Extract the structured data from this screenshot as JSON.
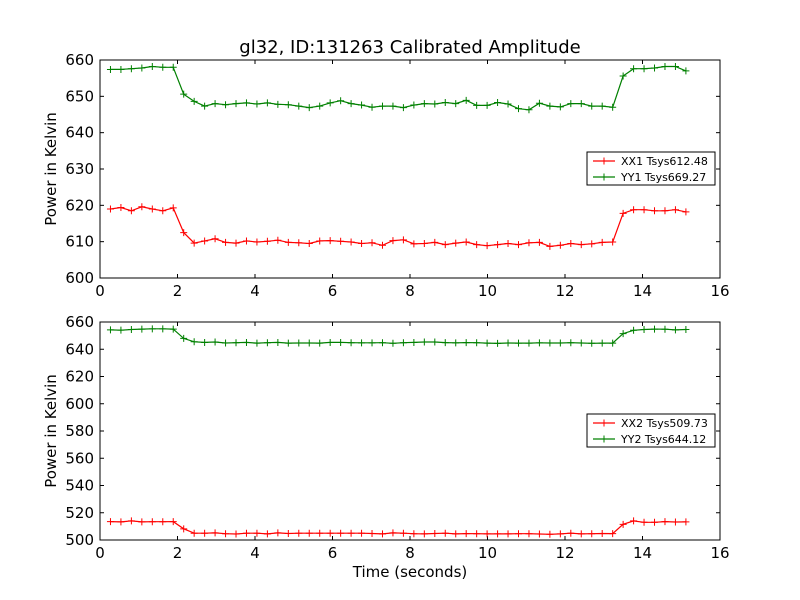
{
  "title": "gl32, ID:131263 Calibrated Amplitude",
  "colors": {
    "red": "#ff0000",
    "green": "#008000"
  },
  "chart_data": [
    {
      "type": "line",
      "title": "gl32, ID:131263 Calibrated Amplitude",
      "xlabel": "",
      "ylabel": "Power in Kelvin",
      "xlim": [
        0,
        16
      ],
      "ylim": [
        600,
        660
      ],
      "xticks": [
        "0",
        "2",
        "4",
        "6",
        "8",
        "10",
        "12",
        "14",
        "16"
      ],
      "yticks": [
        "600",
        "610",
        "620",
        "630",
        "640",
        "650",
        "660"
      ],
      "legend_position": "center-right",
      "grid": false,
      "x": [
        0.27,
        0.54,
        0.81,
        1.08,
        1.35,
        1.62,
        1.89,
        2.16,
        2.43,
        2.7,
        2.97,
        3.24,
        3.51,
        3.78,
        4.05,
        4.32,
        4.59,
        4.86,
        5.13,
        5.4,
        5.67,
        5.94,
        6.21,
        6.48,
        6.75,
        7.02,
        7.29,
        7.56,
        7.83,
        8.1,
        8.37,
        8.64,
        8.91,
        9.18,
        9.45,
        9.72,
        9.99,
        10.26,
        10.53,
        10.8,
        11.07,
        11.34,
        11.61,
        11.88,
        12.15,
        12.42,
        12.69,
        12.96,
        13.23,
        13.5,
        13.77,
        14.04,
        14.31,
        14.58,
        14.85,
        15.12
      ],
      "series": [
        {
          "name": "XX1 Tsys612.48",
          "color": "#ff0000",
          "values": [
            619.0,
            619.4,
            618.5,
            619.6,
            619.0,
            618.5,
            619.3,
            612.5,
            609.6,
            610.2,
            610.8,
            609.8,
            609.6,
            610.2,
            609.9,
            610.1,
            610.4,
            609.8,
            609.7,
            609.5,
            610.2,
            610.3,
            610.1,
            609.9,
            609.5,
            609.7,
            609.0,
            610.3,
            610.5,
            609.4,
            609.5,
            609.8,
            609.2,
            609.6,
            609.9,
            609.2,
            608.9,
            609.2,
            609.5,
            609.2,
            609.7,
            609.8,
            608.7,
            609.0,
            609.5,
            609.2,
            609.4,
            609.8,
            609.9,
            617.8,
            618.8,
            618.8,
            618.5,
            618.5,
            618.8,
            618.2
          ]
        },
        {
          "name": "YY1 Tsys669.27",
          "color": "#008000",
          "values": [
            657.4,
            657.4,
            657.6,
            657.8,
            658.2,
            658.0,
            658.0,
            650.6,
            648.6,
            647.3,
            648.0,
            647.7,
            648.0,
            648.2,
            647.9,
            648.2,
            647.8,
            647.7,
            647.3,
            646.9,
            647.3,
            648.2,
            648.8,
            648.0,
            647.6,
            647.0,
            647.3,
            647.3,
            646.9,
            647.6,
            648.0,
            647.9,
            648.3,
            648.0,
            648.9,
            647.5,
            647.5,
            648.3,
            647.9,
            646.6,
            646.3,
            648.1,
            647.3,
            647.1,
            648.0,
            648.0,
            647.3,
            647.3,
            647.0,
            655.6,
            657.6,
            657.6,
            657.8,
            658.2,
            658.2,
            657.0
          ]
        }
      ]
    },
    {
      "type": "line",
      "title": "",
      "xlabel": "Time (seconds)",
      "ylabel": "Power in Kelvin",
      "xlim": [
        0,
        16
      ],
      "ylim": [
        500,
        660
      ],
      "xticks": [
        "0",
        "2",
        "4",
        "6",
        "8",
        "10",
        "12",
        "14",
        "16"
      ],
      "yticks": [
        "500",
        "520",
        "540",
        "560",
        "580",
        "600",
        "620",
        "640",
        "660"
      ],
      "legend_position": "center-right",
      "grid": false,
      "x": [
        0.27,
        0.54,
        0.81,
        1.08,
        1.35,
        1.62,
        1.89,
        2.16,
        2.43,
        2.7,
        2.97,
        3.24,
        3.51,
        3.78,
        4.05,
        4.32,
        4.59,
        4.86,
        5.13,
        5.4,
        5.67,
        5.94,
        6.21,
        6.48,
        6.75,
        7.02,
        7.29,
        7.56,
        7.83,
        8.1,
        8.37,
        8.64,
        8.91,
        9.18,
        9.45,
        9.72,
        9.99,
        10.26,
        10.53,
        10.8,
        11.07,
        11.34,
        11.61,
        11.88,
        12.15,
        12.42,
        12.69,
        12.96,
        13.23,
        13.5,
        13.77,
        14.04,
        14.31,
        14.58,
        14.85,
        15.12
      ],
      "series": [
        {
          "name": "XX2 Tsys509.73",
          "color": "#ff0000",
          "values": [
            513.5,
            513.3,
            514.0,
            513.3,
            513.4,
            513.4,
            513.5,
            508.2,
            505.0,
            505.0,
            505.2,
            504.6,
            504.4,
            505.0,
            505.0,
            504.5,
            505.2,
            504.8,
            505.0,
            505.0,
            505.0,
            505.0,
            505.0,
            505.0,
            505.0,
            504.8,
            504.5,
            505.2,
            505.0,
            504.6,
            504.5,
            504.8,
            505.0,
            504.5,
            504.7,
            504.6,
            504.5,
            504.5,
            504.5,
            504.6,
            504.6,
            504.4,
            504.2,
            504.5,
            505.0,
            504.5,
            504.6,
            504.8,
            504.7,
            511.5,
            514.0,
            513.0,
            513.0,
            513.5,
            513.2,
            513.3
          ]
        },
        {
          "name": "YY2 Tsys644.12",
          "color": "#008000",
          "values": [
            654.2,
            654.0,
            654.5,
            654.8,
            655.0,
            655.0,
            654.8,
            648.0,
            645.5,
            645.0,
            645.3,
            644.6,
            644.8,
            645.0,
            644.5,
            644.8,
            645.0,
            644.5,
            644.6,
            644.6,
            644.5,
            645.0,
            645.0,
            644.8,
            644.7,
            644.7,
            644.8,
            644.4,
            644.8,
            645.0,
            645.3,
            645.3,
            644.9,
            644.7,
            644.9,
            644.8,
            644.5,
            644.3,
            644.6,
            644.5,
            644.5,
            644.7,
            644.6,
            644.6,
            644.8,
            644.6,
            644.4,
            644.5,
            644.5,
            651.5,
            653.9,
            654.5,
            654.8,
            654.7,
            654.2,
            654.5
          ]
        }
      ]
    }
  ]
}
